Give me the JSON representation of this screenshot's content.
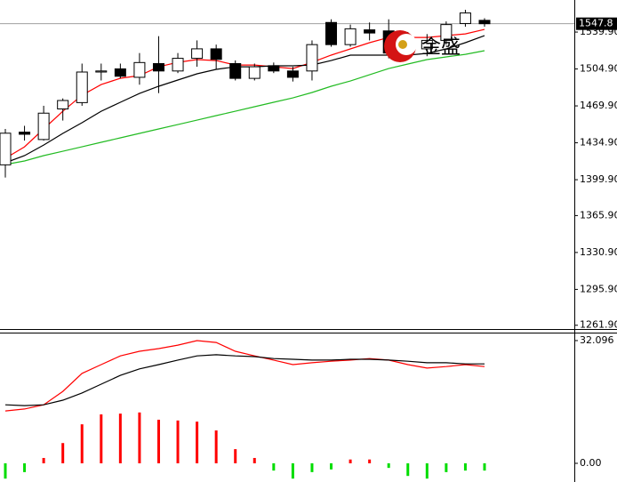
{
  "chart_data": [
    {
      "type": "candlestick",
      "ylim": [
        1258.3,
        1570.3
      ],
      "yticks": [
        {
          "value": 1539.9,
          "label": "1539.90"
        },
        {
          "value": 1504.9,
          "label": "1504.90"
        },
        {
          "value": 1469.9,
          "label": "1469.90"
        },
        {
          "value": 1434.9,
          "label": "1434.90"
        },
        {
          "value": 1399.9,
          "label": "1399.90"
        },
        {
          "value": 1365.9,
          "label": "1365.90"
        },
        {
          "value": 1330.9,
          "label": "1330.90"
        },
        {
          "value": 1295.9,
          "label": "1295.90"
        },
        {
          "value": 1261.9,
          "label": "1261.90"
        }
      ],
      "current_price": 1547.8,
      "watermark": "金盛",
      "up_color": "#ffffff",
      "down_color": "#000000",
      "open": [
        1414,
        1445,
        1438,
        1467,
        1473,
        1502,
        1505,
        1497,
        1510,
        1503,
        1515,
        1524,
        1510,
        1496,
        1508,
        1503,
        1503,
        1549,
        1528,
        1542,
        1541,
        1533,
        1524,
        1532,
        1548,
        1551
      ],
      "high": [
        1448,
        1451,
        1470,
        1477,
        1510,
        1510,
        1510,
        1520,
        1536,
        1520,
        1532,
        1528,
        1513,
        1510,
        1511,
        1507,
        1532,
        1552,
        1547,
        1549,
        1552,
        1540,
        1538,
        1550,
        1561,
        1553
      ],
      "low": [
        1402,
        1437,
        1437,
        1456,
        1470,
        1494,
        1496,
        1490,
        1482,
        1501,
        1507,
        1505,
        1494,
        1494,
        1501,
        1493,
        1494,
        1526,
        1526,
        1532,
        1515,
        1516,
        1517,
        1528,
        1545,
        1545
      ],
      "close": [
        1444,
        1443,
        1463,
        1475,
        1502,
        1503,
        1498,
        1511,
        1503,
        1515,
        1524,
        1514,
        1496,
        1507,
        1503,
        1497,
        1528,
        1528,
        1543,
        1539,
        1520,
        1529,
        1532,
        1547,
        1558,
        1547.8
      ],
      "lines": [
        {
          "color": "#ff0000",
          "values": [
            1420.2,
            1431.1,
            1448.0,
            1464.8,
            1480.0,
            1490.1,
            1496.1,
            1498.6,
            1507.0,
            1511.2,
            1513.8,
            1512.9,
            1508.7,
            1508.7,
            1507.0,
            1505.3,
            1511.2,
            1518.0,
            1523.9,
            1529.8,
            1534.8,
            1534.8,
            1534.8,
            1536.5,
            1538.2,
            1542.4
          ]
        },
        {
          "color": "#000000",
          "values": [
            1416.0,
            1422.7,
            1432.8,
            1443.8,
            1453.9,
            1464.8,
            1473.3,
            1481.7,
            1488.5,
            1494.4,
            1500.3,
            1504.5,
            1507.0,
            1507.0,
            1507.9,
            1507.9,
            1508.7,
            1512.9,
            1518.0,
            1518.0,
            1518.0,
            1518.0,
            1519.7,
            1523.9,
            1529.8,
            1536.5
          ]
        },
        {
          "color": "#22bb22",
          "values": [
            1414.3,
            1417.7,
            1422.7,
            1426.9,
            1431.1,
            1435.4,
            1439.6,
            1443.8,
            1448.0,
            1452.2,
            1456.4,
            1460.7,
            1464.8,
            1469.1,
            1473.3,
            1477.5,
            1482.6,
            1488.5,
            1493.5,
            1499.4,
            1505.3,
            1509.6,
            1513.8,
            1516.3,
            1518.8,
            1522.2
          ]
        }
      ]
    },
    {
      "type": "macd",
      "ylim": [
        -4.42,
        33.95
      ],
      "yticks": [
        32.096,
        {
          "value": 0,
          "label": "0.00"
        }
      ],
      "positive_color": "#ff0000",
      "negative_color": "#00dd00",
      "histogram": [
        -4,
        -2.3,
        1.4,
        5.3,
        10.2,
        12.8,
        13.0,
        13.3,
        11.4,
        11.2,
        10.9,
        8.6,
        3.7,
        1.4,
        -1.9,
        -4,
        -2.3,
        -1.6,
        1.0,
        1.0,
        -1.2,
        -3.3,
        -4,
        -2.3,
        -1.9,
        -1.9
      ],
      "lines": [
        {
          "color": "#ff0000",
          "values": [
            13.7,
            14.2,
            15.3,
            18.8,
            23.5,
            25.8,
            28.1,
            29.3,
            30.0,
            30.9,
            32.1,
            31.6,
            29.3,
            28.1,
            27.0,
            25.8,
            26.3,
            26.7,
            27.0,
            27.4,
            27.0,
            25.8,
            24.9,
            25.3,
            25.8,
            25.3
          ]
        },
        {
          "color": "#000000",
          "values": [
            15.3,
            15.1,
            15.3,
            16.5,
            18.4,
            20.7,
            23.0,
            24.7,
            25.8,
            27.0,
            28.1,
            28.4,
            28.1,
            27.9,
            27.4,
            27.2,
            27.0,
            27.0,
            27.2,
            27.2,
            27.0,
            26.7,
            26.3,
            26.3,
            26.0,
            26.0
          ]
        }
      ]
    }
  ]
}
